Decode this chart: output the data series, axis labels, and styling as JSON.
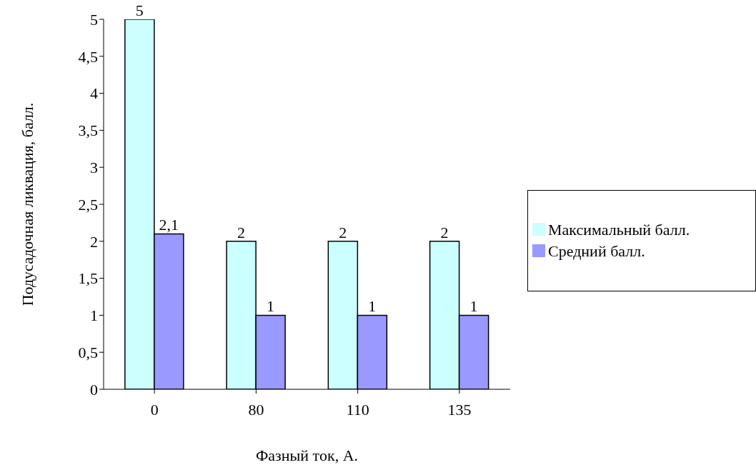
{
  "chart_data": {
    "type": "bar",
    "xlabel": "Фазный ток, А.",
    "ylabel": "Подусадочная ликвация, балл.",
    "categories": [
      "0",
      "80",
      "110",
      "135"
    ],
    "series": [
      {
        "name": "Максимальный балл.",
        "color": "#ccffff",
        "values": [
          5,
          2,
          2,
          2
        ],
        "value_labels": [
          "5",
          "2",
          "2",
          "2"
        ]
      },
      {
        "name": "Средний балл.",
        "color": "#9999ff",
        "values": [
          2.1,
          1,
          1,
          1
        ],
        "value_labels": [
          "2,1",
          "1",
          "1",
          "1"
        ]
      }
    ],
    "ylim": [
      0,
      5
    ],
    "yticks": [
      0,
      {
        "value": 0.5,
        "label": "0,5"
      },
      1,
      {
        "value": 1.5,
        "label": "1,5"
      },
      2,
      {
        "value": 2.5,
        "label": "2,5"
      },
      3,
      {
        "value": 3.5,
        "label": "3,5"
      },
      4,
      {
        "value": 4.5,
        "label": "4,5"
      },
      5
    ],
    "grid": false,
    "legend": "right"
  }
}
